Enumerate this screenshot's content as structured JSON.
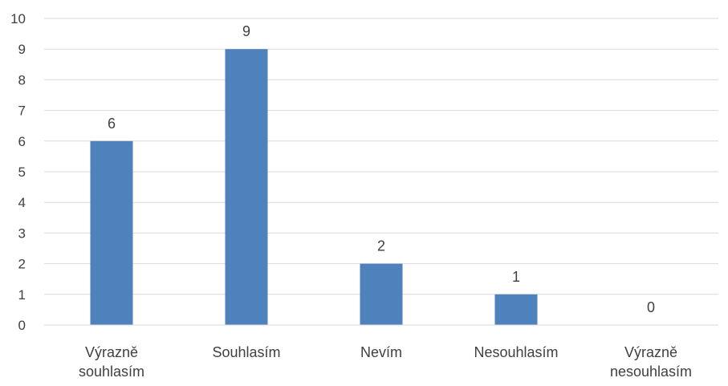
{
  "chart_data": {
    "type": "bar",
    "title": "",
    "xlabel": "",
    "ylabel": "",
    "categories": [
      [
        "Výrazně",
        "souhlasím"
      ],
      [
        "Souhlasím"
      ],
      [
        "Nevím"
      ],
      [
        "Nesouhlasím"
      ],
      [
        "Výrazně",
        "nesouhlasím"
      ]
    ],
    "values": [
      6,
      9,
      2,
      1,
      0
    ],
    "ylim": [
      0,
      10
    ],
    "yticks": [
      0,
      1,
      2,
      3,
      4,
      5,
      6,
      7,
      8,
      9,
      10
    ],
    "grid": true,
    "legend": "none",
    "data_labels": true,
    "colors": {
      "bar": "#4f81bd",
      "grid": "#d9d9d9",
      "axis": "#d9d9d9",
      "text": "#404040"
    }
  }
}
